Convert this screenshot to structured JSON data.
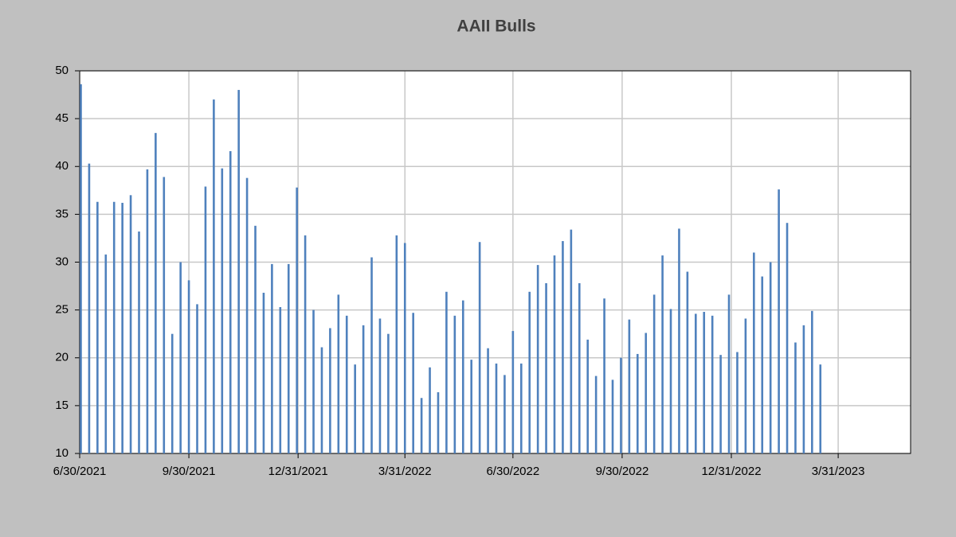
{
  "chart_data": {
    "type": "bar",
    "title": "AAII Bulls",
    "color": "#4f81bd",
    "grid": true,
    "x": [
      "2021-07-01",
      "2021-07-08",
      "2021-07-15",
      "2021-07-22",
      "2021-07-29",
      "2021-08-05",
      "2021-08-12",
      "2021-08-19",
      "2021-08-26",
      "2021-09-02",
      "2021-09-09",
      "2021-09-16",
      "2021-09-23",
      "2021-09-30",
      "2021-10-07",
      "2021-10-14",
      "2021-10-21",
      "2021-10-28",
      "2021-11-04",
      "2021-11-11",
      "2021-11-18",
      "2021-11-25",
      "2021-12-02",
      "2021-12-09",
      "2021-12-16",
      "2021-12-23",
      "2021-12-30",
      "2022-01-06",
      "2022-01-13",
      "2022-01-20",
      "2022-01-27",
      "2022-02-03",
      "2022-02-10",
      "2022-02-17",
      "2022-02-24",
      "2022-03-03",
      "2022-03-10",
      "2022-03-17",
      "2022-03-24",
      "2022-03-31",
      "2022-04-07",
      "2022-04-14",
      "2022-04-21",
      "2022-04-28",
      "2022-05-05",
      "2022-05-12",
      "2022-05-19",
      "2022-05-26",
      "2022-06-02",
      "2022-06-09",
      "2022-06-16",
      "2022-06-23",
      "2022-06-30",
      "2022-07-07",
      "2022-07-14",
      "2022-07-21",
      "2022-07-28",
      "2022-08-04",
      "2022-08-11",
      "2022-08-18",
      "2022-08-25",
      "2022-09-01",
      "2022-09-08",
      "2022-09-15",
      "2022-09-22",
      "2022-09-29",
      "2022-10-06",
      "2022-10-13",
      "2022-10-20",
      "2022-10-27",
      "2022-11-03",
      "2022-11-10",
      "2022-11-17",
      "2022-11-24",
      "2022-12-01",
      "2022-12-08",
      "2022-12-15",
      "2022-12-22",
      "2022-12-29",
      "2023-01-05",
      "2023-01-12",
      "2023-01-19",
      "2023-01-26",
      "2023-02-02",
      "2023-02-09",
      "2023-02-16",
      "2023-02-23",
      "2023-03-02",
      "2023-03-09",
      "2023-03-16"
    ],
    "values": [
      48.6,
      40.3,
      36.3,
      30.8,
      36.3,
      36.2,
      37.0,
      33.2,
      39.7,
      43.5,
      38.9,
      22.5,
      30.0,
      28.1,
      25.6,
      37.9,
      47.0,
      39.8,
      41.6,
      48.0,
      38.8,
      33.8,
      26.8,
      29.8,
      25.3,
      29.8,
      37.8,
      32.8,
      25.0,
      21.1,
      23.1,
      26.6,
      24.4,
      19.3,
      23.4,
      30.5,
      24.1,
      22.5,
      32.8,
      32.0,
      24.7,
      15.8,
      19.0,
      16.4,
      26.9,
      24.4,
      26.0,
      19.8,
      32.1,
      21.0,
      19.4,
      18.2,
      22.8,
      19.4,
      26.9,
      29.7,
      27.8,
      30.7,
      32.2,
      33.4,
      27.8,
      21.9,
      18.1,
      26.2,
      17.7,
      20.0,
      24.0,
      20.4,
      22.6,
      26.6,
      30.7,
      25.1,
      33.5,
      29.0,
      24.6,
      24.8,
      24.4,
      20.3,
      26.6,
      20.6,
      24.1,
      31.0,
      28.5,
      30.0,
      37.6,
      34.1,
      21.6,
      23.4,
      24.9,
      19.3
    ],
    "xlim": [
      "2021-06-30",
      "2023-05-31"
    ],
    "xticks": [
      {
        "value": "2021-06-30",
        "label": "6/30/2021"
      },
      {
        "value": "2021-09-30",
        "label": "9/30/2021"
      },
      {
        "value": "2021-12-31",
        "label": "12/31/2021"
      },
      {
        "value": "2022-03-31",
        "label": "3/31/2022"
      },
      {
        "value": "2022-06-30",
        "label": "6/30/2022"
      },
      {
        "value": "2022-09-30",
        "label": "9/30/2022"
      },
      {
        "value": "2022-12-31",
        "label": "12/31/2022"
      },
      {
        "value": "2023-03-31",
        "label": "3/31/2023"
      }
    ],
    "ylim": [
      10,
      50
    ],
    "yticks": [
      10,
      15,
      20,
      25,
      30,
      35,
      40,
      45,
      50
    ]
  }
}
